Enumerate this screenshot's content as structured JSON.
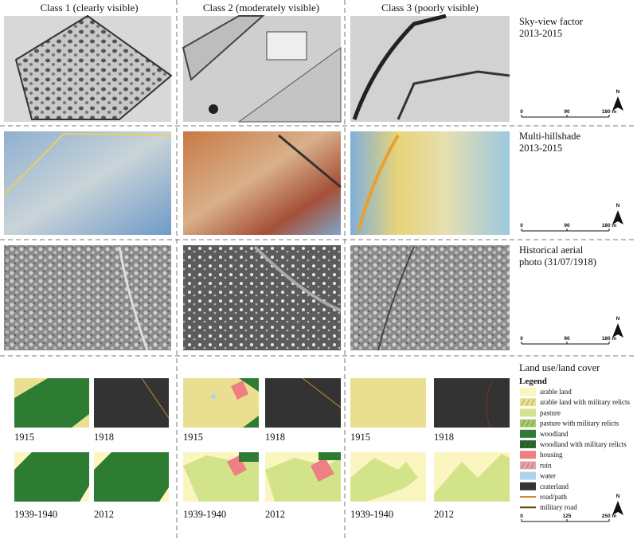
{
  "columns": [
    "Class 1 (clearly visible)",
    "Class 2 (moderately visible)",
    "Class 3 (poorly visible)"
  ],
  "rows": [
    {
      "label": [
        "Sky-view factor",
        "2013-2015"
      ]
    },
    {
      "label": [
        "Multi-hillshade",
        "2013-2015"
      ]
    },
    {
      "label": [
        "Historical aerial",
        "photo (31/07/1918)"
      ]
    }
  ],
  "scale_bar": {
    "labels": [
      "0",
      "90",
      "180 m"
    ],
    "north": "N"
  },
  "land_use": {
    "title": "Land use/land cover",
    "legend_title": "Legend",
    "legend": [
      {
        "name": "arable land",
        "color": "#fbf5c0"
      },
      {
        "name": "arable land with military relicts",
        "color": "#eadf90"
      },
      {
        "name": "pasture",
        "color": "#d3e38a"
      },
      {
        "name": "pasture with military relicts",
        "color": "#a9c868"
      },
      {
        "name": "woodland",
        "color": "#2e7b34"
      },
      {
        "name": "woodland with military relicts",
        "color": "#2c6a30"
      },
      {
        "name": "housing",
        "color": "#ee7f84"
      },
      {
        "name": "ruin",
        "color": "#e7a3a3"
      },
      {
        "name": "water",
        "color": "#a9d6ef"
      },
      {
        "name": "craterland",
        "color": "#333333"
      },
      {
        "name": "road/path",
        "color": "#c88a2c"
      },
      {
        "name": "military road",
        "color": "#6b3a1e"
      }
    ],
    "years": [
      "1915",
      "1918",
      "1939-1940",
      "2012"
    ],
    "scale_bar": {
      "labels": [
        "0",
        "125",
        "250 m"
      ],
      "north": "N"
    }
  }
}
